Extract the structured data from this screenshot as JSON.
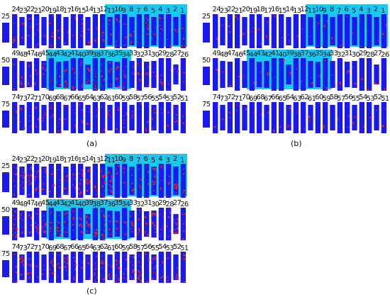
{
  "figure": {
    "captions": [
      "(a)",
      "(b)",
      "(c)"
    ]
  },
  "colors": {
    "rod": "#1a1af0",
    "defect": "#e81e1e",
    "highlight": "#19c9f2",
    "text": "#111111"
  },
  "rows": {
    "row1": {
      "left_label": "25",
      "numbers": [
        "24",
        "23",
        "22",
        "21",
        "20",
        "19",
        "18",
        "17",
        "16",
        "15",
        "14",
        "13",
        "12",
        "11",
        "10",
        "9",
        "8",
        "7",
        "6",
        "5",
        "4",
        "3",
        "2",
        "1"
      ]
    },
    "row2": {
      "left_label": "50",
      "numbers": [
        "49",
        "48",
        "47",
        "46",
        "45",
        "44",
        "43",
        "42",
        "41",
        "40",
        "39",
        "38",
        "37",
        "36",
        "35",
        "34",
        "33",
        "32",
        "31",
        "30",
        "29",
        "28",
        "27",
        "26"
      ]
    },
    "row3": {
      "left_label": "75",
      "numbers": [
        "74",
        "73",
        "72",
        "71",
        "70",
        "69",
        "68",
        "67",
        "66",
        "65",
        "64",
        "63",
        "62",
        "61",
        "60",
        "59",
        "58",
        "57",
        "56",
        "55",
        "54",
        "53",
        "52",
        "51"
      ]
    }
  },
  "panels": [
    {
      "id": "a",
      "caption": "(a)",
      "defect_density": 0.35
    },
    {
      "id": "b",
      "caption": "(b)",
      "defect_density": 0.12
    },
    {
      "id": "c",
      "caption": "(c)",
      "defect_density": 0.6
    }
  ]
}
